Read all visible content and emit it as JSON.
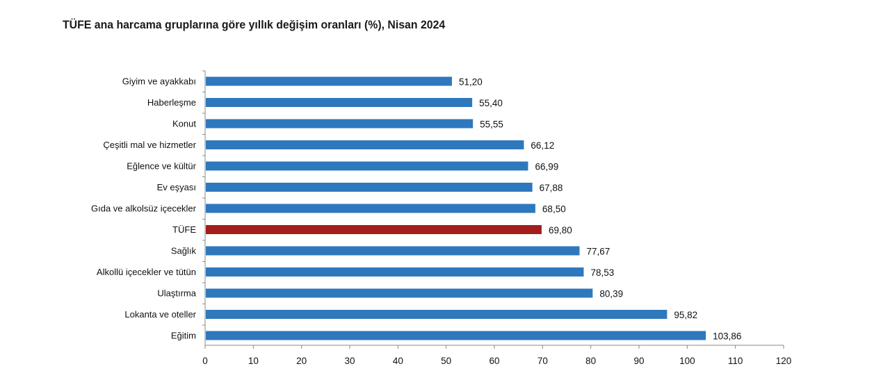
{
  "chart_data": {
    "type": "bar",
    "orientation": "horizontal",
    "title": "TÜFE ana harcama gruplarına göre yıllık değişim oranları (%), Nisan 2024",
    "xlabel": "",
    "ylabel": "",
    "categories": [
      "Giyim ve ayakkabı",
      "Haberleşme",
      "Konut",
      "Çeşitli mal ve hizmetler",
      "Eğlence ve kültür",
      "Ev eşyası",
      "Gıda ve alkolsüz içecekler",
      "TÜFE",
      "Sağlık",
      "Alkollü içecekler ve tütün",
      "Ulaştırma",
      "Lokanta ve oteller",
      "Eğitim"
    ],
    "values": [
      51.2,
      55.4,
      55.55,
      66.12,
      66.99,
      67.88,
      68.5,
      69.8,
      77.67,
      78.53,
      80.39,
      95.82,
      103.86
    ],
    "data_labels": [
      "51,20",
      "55,40",
      "55,55",
      "66,12",
      "66,99",
      "67,88",
      "68,50",
      "69,80",
      "77,67",
      "78,53",
      "80,39",
      "95,82",
      "103,86"
    ],
    "xlim": [
      0,
      120
    ],
    "xticks": [
      "0",
      "10",
      "20",
      "30",
      "40",
      "50",
      "60",
      "70",
      "80",
      "90",
      "100",
      "110",
      "120"
    ],
    "grid": false,
    "legend": "none",
    "colors": {
      "default": "#2e78bd",
      "highlight": "#a31d1d",
      "highlight_category": "TÜFE"
    }
  }
}
